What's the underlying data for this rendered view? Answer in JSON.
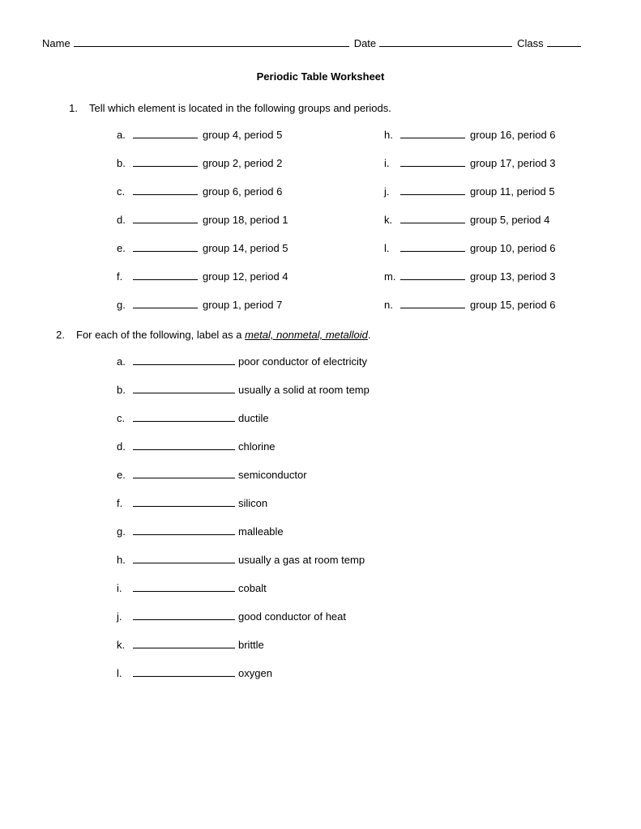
{
  "header": {
    "name_label": "Name",
    "date_label": "Date",
    "class_label": "Class"
  },
  "title": "Periodic Table Worksheet",
  "q1": {
    "number": "1.",
    "text": "Tell which element is located in the following groups and periods.",
    "left": [
      {
        "letter": "a.",
        "desc": "group 4, period 5"
      },
      {
        "letter": "b.",
        "desc": "group 2, period 2"
      },
      {
        "letter": "c.",
        "desc": "group 6, period 6"
      },
      {
        "letter": "d.",
        "desc": "group 18, period 1"
      },
      {
        "letter": "e.",
        "desc": "group 14, period 5"
      },
      {
        "letter": "f.",
        "desc": "group 12, period 4"
      },
      {
        "letter": "g.",
        "desc": "group 1, period 7"
      }
    ],
    "right": [
      {
        "letter": "h.",
        "desc": "group 16, period 6"
      },
      {
        "letter": "i.",
        "desc": "group 17, period 3"
      },
      {
        "letter": "j.",
        "desc": "group 11, period 5"
      },
      {
        "letter": "k.",
        "desc": "group 5, period 4"
      },
      {
        "letter": "l.",
        "desc": "group 10, period 6"
      },
      {
        "letter": "m.",
        "desc": "group 13, period 3"
      },
      {
        "letter": "n.",
        "desc": "group 15, period 6"
      }
    ]
  },
  "q2": {
    "number": "2.",
    "text_pre": "For each of the following, label as a ",
    "text_und": "metal, nonmetal, metalloid",
    "text_post": ".",
    "items": [
      {
        "letter": "a.",
        "desc": "poor conductor of electricity"
      },
      {
        "letter": "b.",
        "desc": "usually a solid at room temp"
      },
      {
        "letter": "c.",
        "desc": "ductile"
      },
      {
        "letter": "d.",
        "desc": "chlorine"
      },
      {
        "letter": "e.",
        "desc": "semiconductor"
      },
      {
        "letter": "f.",
        "desc": "silicon"
      },
      {
        "letter": "g.",
        "desc": "malleable"
      },
      {
        "letter": "h.",
        "desc": "usually a gas at room temp"
      },
      {
        "letter": "i.",
        "desc": "cobalt"
      },
      {
        "letter": "j.",
        "desc": "good conductor of heat"
      },
      {
        "letter": "k.",
        "desc": "brittle"
      },
      {
        "letter": "l.",
        "desc": "oxygen"
      }
    ]
  }
}
